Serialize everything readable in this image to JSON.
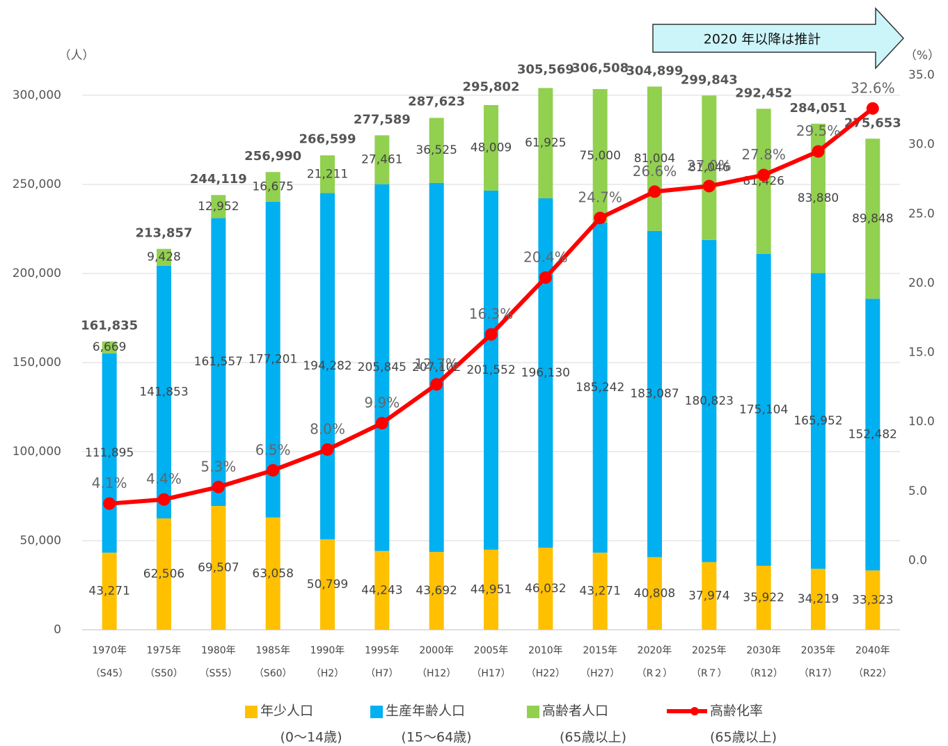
{
  "chart_data": {
    "type": "bar",
    "y_axis_label": "（人）",
    "y2_axis_label": "（%）",
    "annotation": "2020 年以降は推計",
    "categories": [
      "1970年",
      "1975年",
      "1980年",
      "1985年",
      "1990年",
      "1995年",
      "2000年",
      "2005年",
      "2010年",
      "2015年",
      "2020年",
      "2025年",
      "2030年",
      "2035年",
      "2040年"
    ],
    "era_labels": [
      "（S45）",
      "（S50）",
      "（S55）",
      "（S60）",
      "（H2）",
      "（H7）",
      "（H12）",
      "（H17）",
      "（H22）",
      "（H27）",
      "（R２）",
      "（R７）",
      "（R12）",
      "（R17）",
      "（R22）"
    ],
    "ylim": [
      0,
      311300
    ],
    "yticks": [
      0,
      {
        "value": 50000,
        "label": "50,000"
      },
      {
        "value": 100000,
        "label": "100,000"
      },
      {
        "value": 150000,
        "label": "150,000"
      },
      {
        "value": 200000,
        "label": "200,000"
      },
      {
        "value": 250000,
        "label": "250,000"
      },
      {
        "value": 300000,
        "label": "300,000"
      }
    ],
    "y2lim": [
      -5,
      35
    ],
    "y2ticks": [
      {
        "value": 0,
        "label": "0.0"
      },
      {
        "value": 5,
        "label": "5.0"
      },
      {
        "value": 10,
        "label": "10.0"
      },
      {
        "value": 15,
        "label": "15.0"
      },
      {
        "value": 20,
        "label": "20.0"
      },
      {
        "value": 25,
        "label": "25.0"
      },
      {
        "value": 30,
        "label": "30.0"
      },
      {
        "value": 35,
        "label": "35.0"
      }
    ],
    "grid": true,
    "series": [
      {
        "name": "年少人口",
        "sublabel": "(0～14歳)",
        "color": "#FFC000",
        "values": [
          43271,
          62506,
          69507,
          63058,
          50799,
          44243,
          43692,
          44951,
          46032,
          43271,
          40808,
          37974,
          35922,
          34219,
          33323
        ],
        "value_labels": [
          "43,271",
          "62,506",
          "69,507",
          "63,058",
          "50,799",
          "44,243",
          "43,692",
          "44,951",
          "46,032",
          "43,271",
          "40,808",
          "37,974",
          "35,922",
          "34,219",
          "33,323"
        ]
      },
      {
        "name": "生産年齢人口",
        "sublabel": "(15～64歳)",
        "color": "#00B0F0",
        "values": [
          111895,
          141853,
          161557,
          177201,
          194282,
          205845,
          207102,
          201552,
          196130,
          185242,
          183087,
          180823,
          175104,
          165952,
          152482
        ],
        "value_labels": [
          "111,895",
          "141,853",
          "161,557",
          "177,201",
          "194,282",
          "205,845",
          "207,102",
          "201,552",
          "196,130",
          "185,242",
          "183,087",
          "180,823",
          "175,104",
          "165,952",
          "152,482"
        ]
      },
      {
        "name": "高齢者人口",
        "sublabel": "(65歳以上)",
        "color": "#92D050",
        "values": [
          6669,
          9428,
          12952,
          16675,
          21211,
          27461,
          36525,
          48009,
          61925,
          75000,
          81004,
          81046,
          81426,
          83880,
          89848
        ],
        "value_labels": [
          "6,669",
          "9,428",
          "12,952",
          "16,675",
          "21,211",
          "27,461",
          "36,525",
          "48,009",
          "61,925",
          "75,000",
          "81,004",
          "81,046",
          "81,426",
          "83,880",
          "89,848"
        ]
      },
      {
        "name": "高齢化率",
        "sublabel": "(65歳以上)",
        "color": "#FF0000",
        "type": "line",
        "axis": "y2",
        "values": [
          4.1,
          4.4,
          5.3,
          6.5,
          8.0,
          9.9,
          12.7,
          16.3,
          20.4,
          24.7,
          26.6,
          27.0,
          27.8,
          29.5,
          32.6
        ],
        "value_labels": [
          "4.1%",
          "4.4%",
          "5.3%",
          "6.5%",
          "8.0%",
          "9.9%",
          "12.7%",
          "16.3%",
          "20.4%",
          "24.7%",
          "26.6%",
          "27.0%",
          "27.8%",
          "29.5%",
          "32.6%"
        ]
      }
    ],
    "totals": {
      "values": [
        161835,
        213857,
        244119,
        256990,
        266599,
        277589,
        287623,
        295802,
        305569,
        306508,
        304899,
        299843,
        292452,
        284051,
        275653
      ],
      "value_labels": [
        "161,835",
        "213,857",
        "244,119",
        "256,990",
        "266,599",
        "277,589",
        "287,623",
        "295,802",
        "305,569",
        "306,508",
        "304,899",
        "299,843",
        "292,452",
        "284,051",
        "275,653"
      ]
    }
  }
}
